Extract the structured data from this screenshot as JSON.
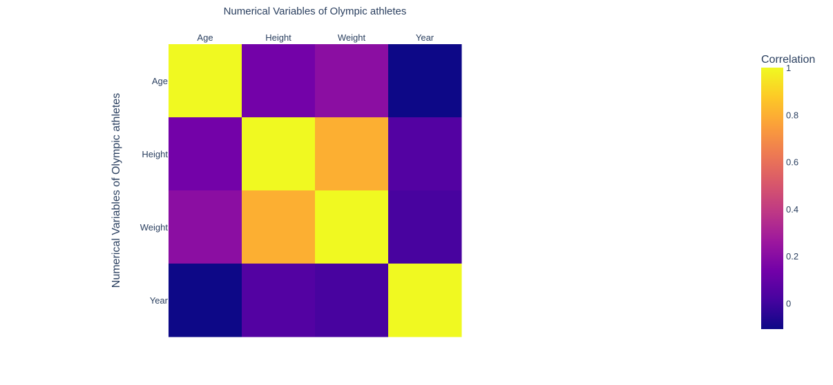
{
  "chart_data": {
    "type": "heatmap",
    "title": "Numerical Variables of Olympic athletes",
    "xlabel": "",
    "ylabel": "Numerical Variables of Olympic athletes",
    "x_categories": [
      "Age",
      "Height",
      "Weight",
      "Year"
    ],
    "y_categories": [
      "Age",
      "Height",
      "Weight",
      "Year"
    ],
    "values": [
      [
        1.0,
        0.14,
        0.21,
        -0.11
      ],
      [
        0.14,
        1.0,
        0.8,
        0.05
      ],
      [
        0.21,
        0.8,
        1.0,
        0.02
      ],
      [
        -0.11,
        0.05,
        0.02,
        1.0
      ]
    ],
    "colorscale": [
      "#0d0887",
      "#46039f",
      "#7201a8",
      "#9c179e",
      "#bd3786",
      "#d8576b",
      "#ed7953",
      "#fb9f3a",
      "#fdca26",
      "#f0f921"
    ],
    "colorbar": {
      "title": "Correlation",
      "range": [
        -0.11,
        1.0
      ],
      "ticks": [
        0,
        0.2,
        0.4,
        0.6,
        0.8,
        1
      ],
      "tick_labels": [
        "0",
        "0.2",
        "0.4",
        "0.6",
        "0.8",
        "1"
      ]
    },
    "x_axis_side": "top",
    "legend_placement": "right"
  }
}
